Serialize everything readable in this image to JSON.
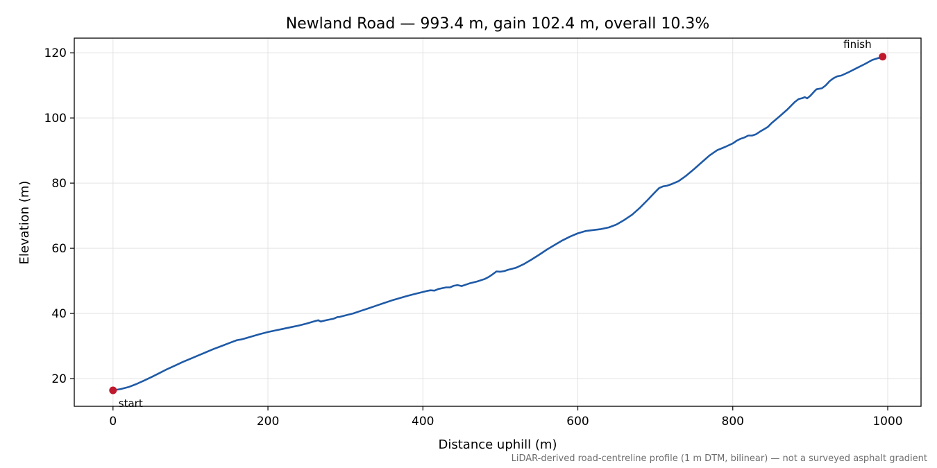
{
  "chart_data": {
    "type": "line",
    "title": "Newland Road — 993.4 m, gain 102.4 m, overall 10.3%",
    "xlabel": "Distance uphill (m)",
    "ylabel": "Elevation (m)",
    "xlim": [
      -50,
      1043
    ],
    "ylim": [
      11.5,
      124.5
    ],
    "xticks": [
      0,
      200,
      400,
      600,
      800,
      1000
    ],
    "yticks": [
      20,
      40,
      60,
      80,
      100,
      120
    ],
    "grid": true,
    "line_color": "#1f5aa6",
    "marker_color": "#c0182c",
    "series": [
      {
        "x": [
          0,
          10,
          20,
          30,
          40,
          50,
          60,
          70,
          80,
          90,
          100,
          110,
          120,
          130,
          140,
          150,
          160,
          165,
          170,
          180,
          190,
          200,
          210,
          220,
          230,
          240,
          250,
          260,
          265,
          268,
          275,
          285,
          290,
          292,
          300,
          310,
          320,
          330,
          340,
          350,
          360,
          370,
          380,
          390,
          400,
          405,
          410,
          415,
          420,
          430,
          435,
          440,
          445,
          450,
          455,
          460,
          470,
          480,
          485,
          490,
          495,
          500,
          505,
          510,
          520,
          530,
          540,
          550,
          560,
          570,
          580,
          590,
          600,
          610,
          620,
          630,
          640,
          650,
          660,
          670,
          680,
          690,
          700,
          705,
          710,
          715,
          720,
          730,
          740,
          750,
          760,
          770,
          780,
          790,
          800,
          805,
          810,
          815,
          820,
          825,
          830,
          835,
          840,
          845,
          850,
          860,
          870,
          880,
          885,
          890,
          893,
          896,
          900,
          905,
          908,
          910,
          915,
          920,
          925,
          930,
          935,
          940,
          950,
          960,
          970,
          980,
          993.4
        ],
        "y": [
          16.4,
          16.8,
          17.4,
          18.3,
          19.4,
          20.5,
          21.7,
          22.9,
          24.0,
          25.1,
          26.1,
          27.1,
          28.1,
          29.1,
          30.0,
          30.9,
          31.8,
          32.0,
          32.3,
          33.0,
          33.7,
          34.3,
          34.8,
          35.3,
          35.8,
          36.3,
          36.9,
          37.6,
          37.9,
          37.5,
          37.9,
          38.4,
          38.9,
          38.9,
          39.4,
          40.0,
          40.8,
          41.6,
          42.4,
          43.2,
          44.0,
          44.7,
          45.4,
          46.0,
          46.6,
          46.9,
          47.1,
          47.0,
          47.5,
          48.0,
          48.0,
          48.5,
          48.7,
          48.4,
          48.8,
          49.2,
          49.8,
          50.6,
          51.2,
          52.0,
          52.9,
          52.8,
          53.0,
          53.4,
          54.0,
          55.1,
          56.5,
          58.0,
          59.6,
          61.0,
          62.4,
          63.6,
          64.6,
          65.3,
          65.6,
          65.9,
          66.4,
          67.3,
          68.7,
          70.3,
          72.4,
          74.8,
          77.3,
          78.5,
          79.0,
          79.2,
          79.6,
          80.6,
          82.3,
          84.3,
          86.4,
          88.5,
          90.1,
          91.1,
          92.2,
          93.0,
          93.6,
          94.0,
          94.6,
          94.6,
          95.0,
          95.8,
          96.5,
          97.2,
          98.4,
          100.4,
          102.5,
          104.9,
          105.8,
          106.1,
          106.4,
          106.0,
          106.8,
          108.1,
          108.8,
          108.9,
          109.1,
          110.0,
          111.3,
          112.2,
          112.8,
          113.0,
          114.1,
          115.3,
          116.5,
          117.8,
          118.8
        ]
      }
    ],
    "annotations": [
      {
        "text": "start",
        "x": 0,
        "y": 16.4
      },
      {
        "text": "finish",
        "x": 993.4,
        "y": 118.8
      }
    ],
    "footnote": "LiDAR-derived road-centreline profile (1 m DTM, bilinear) — not a surveyed asphalt gradient"
  }
}
